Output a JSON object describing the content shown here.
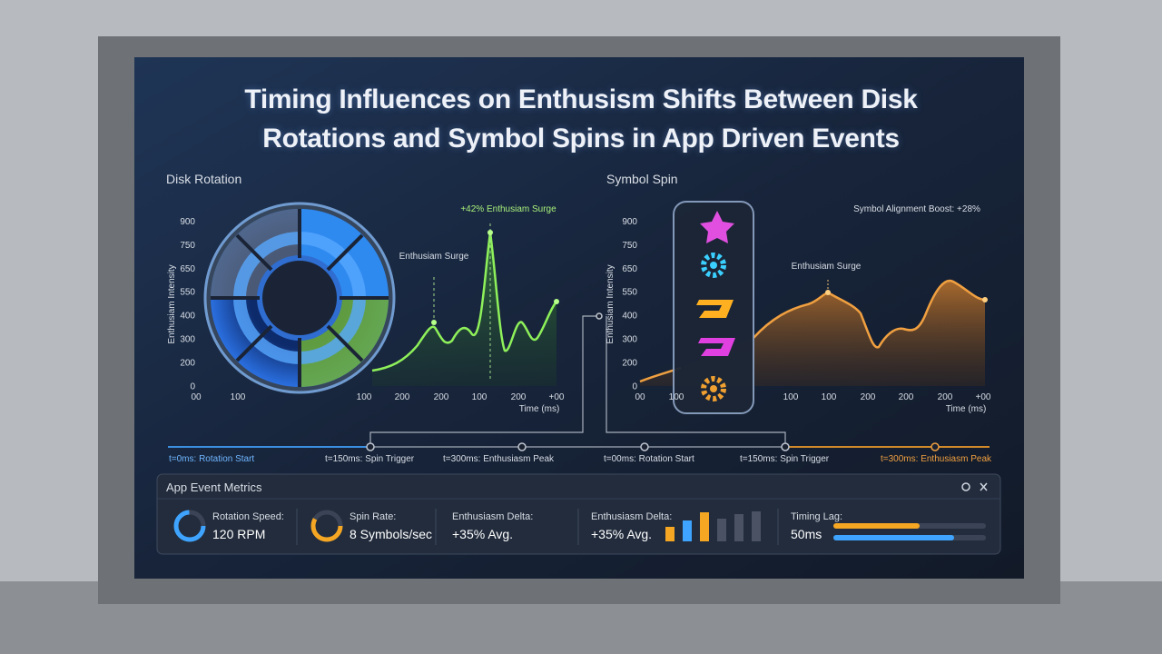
{
  "title": "Timing Influences on Enthusism Shifts Between Disk Rotations and Symbol Spins in App Driven Events",
  "panels": [
    {
      "heading": "Disk Rotation",
      "y_axis_label": "Enthusiam Intensity",
      "x_axis_label": "Time (ms)",
      "y_tick_labels": [
        "900",
        "750",
        "650",
        "550",
        "400",
        "300",
        "200",
        "0"
      ],
      "x_tick_labels": [
        "00",
        "100",
        "100",
        "200",
        "200",
        "100",
        "200",
        "+00"
      ],
      "annotations": [
        "+42% Enthusiam Surge",
        "Enthusiam Surge"
      ]
    },
    {
      "heading": "Symbol Spin",
      "y_axis_label": "Enthusiam Intensity",
      "x_axis_label": "Time (ms)",
      "y_tick_labels": [
        "900",
        "750",
        "650",
        "550",
        "400",
        "300",
        "200",
        "0"
      ],
      "x_tick_labels": [
        "00",
        "100",
        "100",
        "100",
        "200",
        "200",
        "200",
        "+00"
      ],
      "annotations": [
        "Symbol Alignment Boost: +28%",
        "Enthusiam Surge"
      ]
    }
  ],
  "timeline": [
    "t=0ms: Rotation Start",
    "t=150ms: Spin Trigger",
    "t=300ms: Enthusiasm Peak",
    "t=00ms: Rotation Start",
    "t=150ms: Spin Trigger",
    "t=300ms: Enthusiasm Peak"
  ],
  "metrics": {
    "title": "App Event Metrics",
    "items": [
      {
        "label": "Rotation Speed:",
        "value": "120 RPM"
      },
      {
        "label": "Spin Rate:",
        "value": "8 Symbols/sec"
      },
      {
        "label": "Enthusiasm Delta:",
        "value": "+35% Avg."
      },
      {
        "label": "Enthusiasm Delta:",
        "value": "+35% Avg."
      },
      {
        "label": "Timing Lag:",
        "value": "50ms"
      }
    ]
  }
}
